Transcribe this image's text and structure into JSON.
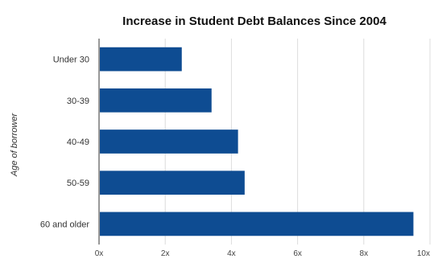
{
  "chart_data": {
    "type": "bar",
    "orientation": "horizontal",
    "title": "Increase in Student Debt Balances Since 2004",
    "xlabel": "",
    "ylabel": "Age of borrower",
    "categories": [
      "Under 30",
      "30-39",
      "40-49",
      "50-59",
      "60 and older"
    ],
    "values": [
      2.5,
      3.4,
      4.2,
      4.4,
      9.5
    ],
    "xlim": [
      0,
      10
    ],
    "x_ticks": [
      0,
      2,
      4,
      6,
      8,
      10
    ],
    "x_tick_labels": [
      "0x",
      "2x",
      "4x",
      "6x",
      "8x",
      "10x"
    ],
    "grid": true,
    "bar_color": "#0e4c92"
  }
}
